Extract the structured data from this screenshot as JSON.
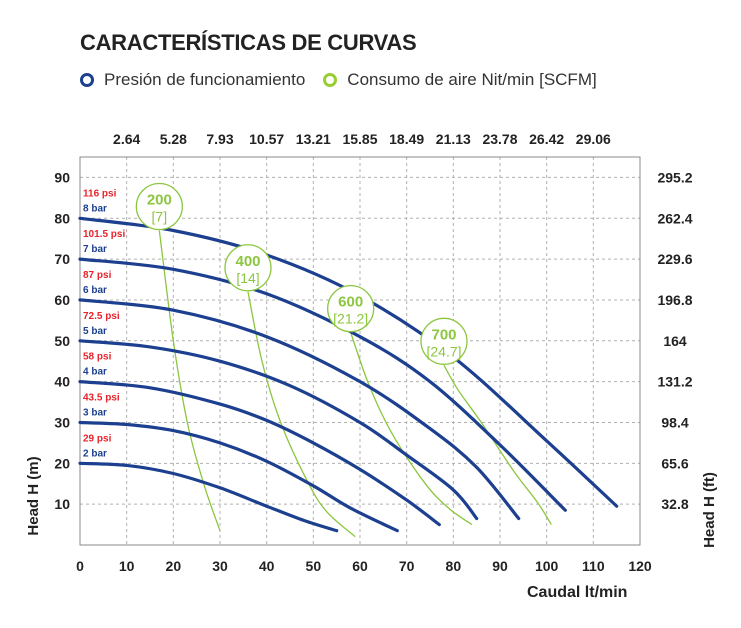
{
  "chart_title": "CARACTERÍSTICAS DE CURVAS",
  "legend": [
    {
      "label": "Presión de funcionamiento",
      "color": "#1c3f8f"
    },
    {
      "label": "Consumo de aire Nit/min [SCFM]",
      "color": "#9acd32"
    }
  ],
  "colors": {
    "pressure_curve": "#1c3f8f",
    "air_curve": "#8cc63f",
    "psi_label": "#e8232a",
    "bar_label": "#1c3f8f",
    "grid": "#b0b0b0"
  },
  "chart_data": {
    "type": "line",
    "xlabel": "Caudal lt/min",
    "ylabel": "Head H (m)",
    "ylabel_right": "Head H (ft)",
    "xlim": [
      0,
      120
    ],
    "ylim": [
      0,
      95
    ],
    "x_ticks": [
      0,
      10,
      20,
      30,
      40,
      50,
      60,
      70,
      80,
      90,
      100,
      110,
      120
    ],
    "y_ticks": [
      10,
      20,
      30,
      40,
      50,
      60,
      70,
      80,
      90
    ],
    "x_top_ticks": [
      "2.64",
      "5.28",
      "7.93",
      "10.57",
      "13.21",
      "15.85",
      "18.49",
      "21.13",
      "23.78",
      "26.42",
      "29.06"
    ],
    "y_right_ticks": [
      "32.8",
      "65.6",
      "98.4",
      "131.2",
      "164",
      "196.8",
      "229.6",
      "262.4",
      "295.2"
    ],
    "grid": "dashed",
    "series": [
      {
        "name": "2 bar",
        "psi": "29 psi",
        "points": [
          [
            0,
            20
          ],
          [
            10,
            19.5
          ],
          [
            20,
            17.5
          ],
          [
            30,
            14
          ],
          [
            40,
            9.5
          ],
          [
            48,
            6
          ],
          [
            55,
            3.5
          ]
        ]
      },
      {
        "name": "3 bar",
        "psi": "43.5 psi",
        "points": [
          [
            0,
            30
          ],
          [
            10,
            29.5
          ],
          [
            20,
            28
          ],
          [
            30,
            25
          ],
          [
            40,
            20.5
          ],
          [
            50,
            14.5
          ],
          [
            58,
            9
          ],
          [
            68,
            3.5
          ]
        ]
      },
      {
        "name": "4 bar",
        "psi": "58 psi",
        "points": [
          [
            0,
            40
          ],
          [
            15,
            38.5
          ],
          [
            30,
            34.5
          ],
          [
            40,
            30.5
          ],
          [
            50,
            25
          ],
          [
            60,
            18.5
          ],
          [
            70,
            11
          ],
          [
            77,
            5
          ]
        ]
      },
      {
        "name": "5 bar",
        "psi": "72.5 psi",
        "points": [
          [
            0,
            50
          ],
          [
            15,
            48.5
          ],
          [
            30,
            45
          ],
          [
            45,
            39
          ],
          [
            60,
            30
          ],
          [
            70,
            22
          ],
          [
            80,
            13.5
          ],
          [
            85,
            6.5
          ]
        ]
      },
      {
        "name": "6 bar",
        "psi": "87 psi",
        "points": [
          [
            0,
            60
          ],
          [
            20,
            57.5
          ],
          [
            40,
            51
          ],
          [
            60,
            40
          ],
          [
            75,
            28.5
          ],
          [
            85,
            19
          ],
          [
            94,
            6.5
          ]
        ]
      },
      {
        "name": "7 bar",
        "psi": "101.5 psi",
        "points": [
          [
            0,
            70
          ],
          [
            20,
            67.5
          ],
          [
            40,
            61.5
          ],
          [
            60,
            51
          ],
          [
            75,
            40
          ],
          [
            90,
            24.5
          ],
          [
            104,
            8.5
          ]
        ]
      },
      {
        "name": "8 bar",
        "psi": "116 psi",
        "points": [
          [
            0,
            80
          ],
          [
            20,
            77
          ],
          [
            40,
            71
          ],
          [
            60,
            61
          ],
          [
            80,
            46
          ],
          [
            100,
            25.5
          ],
          [
            115,
            9.5
          ]
        ]
      }
    ],
    "air_consumption": [
      {
        "label": "200",
        "label_scfm": "[7]",
        "points": [
          [
            17,
            77
          ],
          [
            20,
            50
          ],
          [
            23,
            30
          ],
          [
            26.5,
            15
          ],
          [
            30,
            3.5
          ]
        ]
      },
      {
        "label": "400",
        "label_scfm": "[14]",
        "points": [
          [
            36,
            62
          ],
          [
            39,
            45
          ],
          [
            43,
            30
          ],
          [
            49,
            15
          ],
          [
            53,
            8
          ],
          [
            59,
            2
          ]
        ]
      },
      {
        "label": "600",
        "label_scfm": "[21.2]",
        "points": [
          [
            58,
            52
          ],
          [
            62,
            39
          ],
          [
            67,
            27
          ],
          [
            74,
            15
          ],
          [
            79,
            9
          ],
          [
            84,
            5
          ]
        ]
      },
      {
        "label": "700",
        "label_scfm": "[24.7]",
        "points": [
          [
            78,
            44
          ],
          [
            81,
            38
          ],
          [
            86,
            30
          ],
          [
            93,
            18
          ],
          [
            98,
            10.5
          ],
          [
            101,
            5
          ]
        ]
      }
    ]
  }
}
